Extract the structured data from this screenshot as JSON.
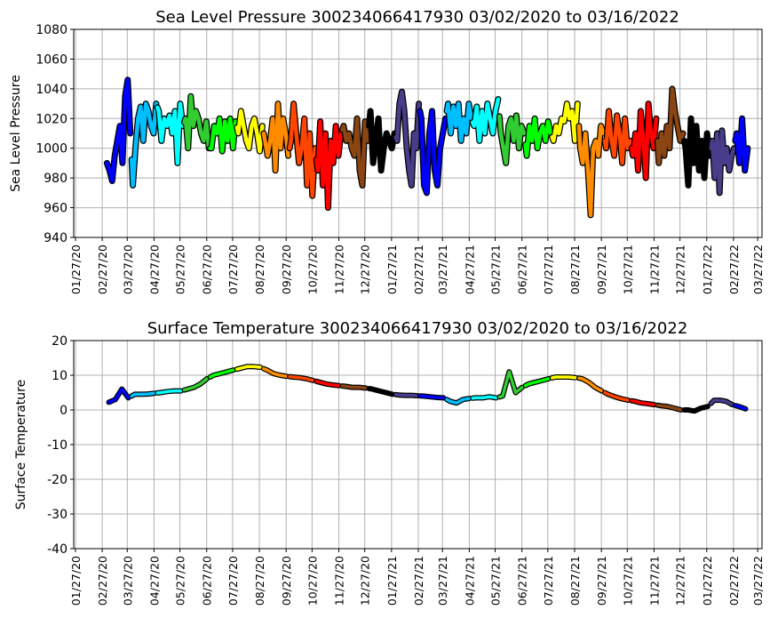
{
  "chart_data": [
    {
      "type": "line",
      "title": "Sea Level Pressure 300234066417930  03/02/2020 to 03/16/2022",
      "xlabel": "",
      "ylabel": "Sea Level Pressure",
      "ylim": [
        940,
        1080
      ],
      "yticks": [
        940,
        960,
        980,
        1000,
        1020,
        1040,
        1060,
        1080
      ],
      "xlim": [
        "2020-01-25",
        "2022-04-01"
      ],
      "grid": true,
      "xtick_labels": [
        "01/27/20",
        "02/27/20",
        "03/27/20",
        "04/27/20",
        "05/27/20",
        "06/27/20",
        "07/27/20",
        "08/27/20",
        "09/27/20",
        "10/27/20",
        "11/27/20",
        "12/27/20",
        "01/27/21",
        "02/27/21",
        "03/27/21",
        "04/27/21",
        "05/27/21",
        "06/27/21",
        "07/27/21",
        "08/27/21",
        "09/27/21",
        "10/27/21",
        "11/27/21",
        "12/27/21",
        "01/27/22",
        "02/27/22",
        "03/27/22"
      ],
      "series": [
        {
          "month": "2020-03",
          "color": "#0000ff",
          "values": [
            990,
            985,
            978,
            995,
            1005,
            1015,
            990,
            1035,
            1046,
            1010
          ]
        },
        {
          "month": "2020-04",
          "color": "#00bfff",
          "values": [
            975,
            1000,
            1020,
            1028,
            1005,
            1030,
            1025,
            1015,
            1010,
            1030
          ]
        },
        {
          "month": "2020-05",
          "color": "#00ffff",
          "values": [
            1025,
            1005,
            1020,
            1015,
            1022,
            1010,
            1025,
            990,
            1030,
            1015
          ]
        },
        {
          "month": "2020-06",
          "color": "#32cd32",
          "values": [
            1020,
            1000,
            1035,
            1015,
            1025,
            1020,
            1010,
            1005,
            1018,
            1000
          ]
        },
        {
          "month": "2020-07",
          "color": "#00ff00",
          "values": [
            1000,
            1015,
            1010,
            1020,
            998,
            1018,
            1005,
            1020,
            1000,
            1018
          ]
        },
        {
          "month": "2020-08",
          "color": "#ffff00",
          "values": [
            1010,
            1025,
            1015,
            1005,
            1000,
            1015,
            1020,
            1010,
            998,
            1015
          ]
        },
        {
          "month": "2020-09",
          "color": "#ff8c00",
          "values": [
            1005,
            995,
            1005,
            1020,
            985,
            1030,
            1000,
            1020,
            1010,
            995
          ]
        },
        {
          "month": "2020-10",
          "color": "#ff4500",
          "values": [
            1005,
            1030,
            1010,
            990,
            1000,
            1020,
            975,
            1010,
            968,
            1000
          ]
        },
        {
          "month": "2020-11",
          "color": "#ff0000",
          "values": [
            985,
            1018,
            975,
            1010,
            960,
            1005,
            990,
            1015,
            995,
            1010
          ]
        },
        {
          "month": "2020-12",
          "color": "#8b4513",
          "values": [
            1015,
            1005,
            1010,
            1000,
            995,
            1020,
            985,
            975,
            1018,
            1005
          ]
        },
        {
          "month": "2021-01",
          "color": "#000000",
          "values": [
            1025,
            990,
            1005,
            1020,
            985,
            1000,
            1010,
            1005,
            1000,
            1010
          ]
        },
        {
          "month": "2021-02",
          "color": "#483d8b",
          "values": [
            1005,
            1030,
            1038,
            1025,
            1000,
            985,
            975,
            1010,
            1000,
            1030
          ]
        },
        {
          "month": "2021-03",
          "color": "#0000ff",
          "values": [
            1020,
            975,
            970,
            1010,
            1025,
            985,
            975,
            1000,
            1010,
            1020
          ]
        },
        {
          "month": "2021-04",
          "color": "#00bfff",
          "values": [
            1030,
            1010,
            1028,
            1015,
            1030,
            1005,
            1020,
            1010,
            1030,
            1020
          ]
        },
        {
          "month": "2021-05",
          "color": "#00ffff",
          "values": [
            1015,
            1028,
            1005,
            1025,
            1010,
            1030,
            1020,
            1010,
            1025,
            1033
          ]
        },
        {
          "month": "2021-06",
          "color": "#32cd32",
          "values": [
            1010,
            1000,
            990,
            1015,
            1020,
            1005,
            1022,
            1000,
            1015,
            1010
          ]
        },
        {
          "month": "2021-07",
          "color": "#00ff00",
          "values": [
            995,
            1015,
            1005,
            1020,
            1000,
            1010,
            1015,
            1005,
            1018,
            1010
          ]
        },
        {
          "month": "2021-08",
          "color": "#ffff00",
          "values": [
            1005,
            1015,
            1010,
            1020,
            1018,
            1030,
            1020,
            1025,
            1005,
            1030
          ]
        },
        {
          "month": "2021-09",
          "color": "#ff8c00",
          "values": [
            1000,
            990,
            1010,
            985,
            955,
            1000,
            1005,
            995,
            1015,
            1010
          ]
        },
        {
          "month": "2021-10",
          "color": "#ff4500",
          "values": [
            1000,
            1025,
            1005,
            995,
            1022,
            1010,
            990,
            1020,
            1000,
            1005
          ]
        },
        {
          "month": "2021-11",
          "color": "#ff0000",
          "values": [
            995,
            1010,
            985,
            1025,
            1005,
            980,
            1030,
            1010,
            1000,
            1020
          ]
        },
        {
          "month": "2021-12",
          "color": "#8b4513",
          "values": [
            990,
            1010,
            995,
            1015,
            1000,
            1040,
            1025,
            1015,
            1005,
            1010
          ]
        },
        {
          "month": "2022-01",
          "color": "#000000",
          "values": [
            1000,
            975,
            1020,
            990,
            1015,
            985,
            1005,
            980,
            1010,
            995
          ]
        },
        {
          "month": "2022-02",
          "color": "#483d8b",
          "values": [
            1005,
            980,
            1010,
            970,
            1012,
            990,
            1000,
            985,
            995,
            1000
          ]
        },
        {
          "month": "2022-03",
          "color": "#0000ff",
          "values": [
            1010,
            990,
            1020,
            985,
            1000
          ]
        }
      ]
    },
    {
      "type": "line",
      "title": "Surface Temperature 300234066417930  03/02/2020 to 03/16/2022",
      "xlabel": "",
      "ylabel": "Surface Temperature",
      "ylim": [
        -40,
        20
      ],
      "yticks": [
        -40,
        -30,
        -20,
        -10,
        0,
        10,
        20
      ],
      "xlim": [
        "2020-01-25",
        "2022-04-01"
      ],
      "grid": true,
      "xtick_labels": [
        "01/27/20",
        "02/27/20",
        "03/27/20",
        "04/27/20",
        "05/27/20",
        "06/27/20",
        "07/27/20",
        "08/27/20",
        "09/27/20",
        "10/27/20",
        "11/27/20",
        "12/27/20",
        "01/27/21",
        "02/27/21",
        "03/27/21",
        "04/27/21",
        "05/27/21",
        "06/27/21",
        "07/27/21",
        "08/27/21",
        "09/27/21",
        "10/27/21",
        "11/27/21",
        "12/27/21",
        "01/27/22",
        "02/27/22",
        "03/27/22"
      ],
      "series": [
        {
          "month": "2020-03",
          "color": "#0000ff",
          "values": [
            2.2,
            3,
            6,
            3.5
          ]
        },
        {
          "month": "2020-04",
          "color": "#00bfff",
          "values": [
            4.5,
            4.5,
            4.6,
            4.8
          ]
        },
        {
          "month": "2020-05",
          "color": "#00ffff",
          "values": [
            5,
            5.3,
            5.5,
            5.5
          ]
        },
        {
          "month": "2020-06",
          "color": "#32cd32",
          "values": [
            6,
            6.5,
            7.5,
            9
          ]
        },
        {
          "month": "2020-07",
          "color": "#00ff00",
          "values": [
            10,
            10.5,
            11,
            11.5
          ]
        },
        {
          "month": "2020-08",
          "color": "#ffff00",
          "values": [
            12,
            12.5,
            12.5,
            12.3
          ]
        },
        {
          "month": "2020-09",
          "color": "#ff8c00",
          "values": [
            11.5,
            10.5,
            10,
            9.7
          ]
        },
        {
          "month": "2020-10",
          "color": "#ff4500",
          "values": [
            9.5,
            9.3,
            9,
            8.5
          ]
        },
        {
          "month": "2020-11",
          "color": "#ff0000",
          "values": [
            8,
            7.5,
            7.2,
            7
          ]
        },
        {
          "month": "2020-12",
          "color": "#8b4513",
          "values": [
            6.8,
            6.5,
            6.5,
            6.3
          ]
        },
        {
          "month": "2021-01",
          "color": "#000000",
          "values": [
            6,
            5.5,
            5,
            4.5
          ]
        },
        {
          "month": "2021-02",
          "color": "#483d8b",
          "values": [
            4.3,
            4.2,
            4.2,
            4.1
          ]
        },
        {
          "month": "2021-03",
          "color": "#0000ff",
          "values": [
            4,
            3.8,
            3.6,
            3.5
          ]
        },
        {
          "month": "2021-04",
          "color": "#00bfff",
          "values": [
            2.5,
            2,
            3,
            3.3
          ]
        },
        {
          "month": "2021-05",
          "color": "#00ffff",
          "values": [
            3.5,
            3.5,
            3.8,
            3.5
          ]
        },
        {
          "month": "2021-06",
          "color": "#32cd32",
          "values": [
            4,
            11,
            5,
            6.5
          ]
        },
        {
          "month": "2021-07",
          "color": "#00ff00",
          "values": [
            7.5,
            8,
            8.5,
            9
          ]
        },
        {
          "month": "2021-08",
          "color": "#ffff00",
          "values": [
            9.5,
            9.5,
            9.5,
            9.3
          ]
        },
        {
          "month": "2021-09",
          "color": "#ff8c00",
          "values": [
            9,
            8,
            6.5,
            5.5
          ]
        },
        {
          "month": "2021-10",
          "color": "#ff4500",
          "values": [
            4.5,
            3.8,
            3.2,
            2.8
          ]
        },
        {
          "month": "2021-11",
          "color": "#ff0000",
          "values": [
            2.5,
            2,
            1.8,
            1.5
          ]
        },
        {
          "month": "2021-12",
          "color": "#8b4513",
          "values": [
            1.2,
            1,
            0.5,
            0
          ]
        },
        {
          "month": "2022-01",
          "color": "#000000",
          "values": [
            0,
            -0.3,
            0.5,
            1
          ]
        },
        {
          "month": "2022-02",
          "color": "#483d8b",
          "values": [
            2.8,
            2.8,
            2.5,
            1.5
          ]
        },
        {
          "month": "2022-03",
          "color": "#0000ff",
          "values": [
            1,
            0.3
          ]
        }
      ]
    }
  ]
}
